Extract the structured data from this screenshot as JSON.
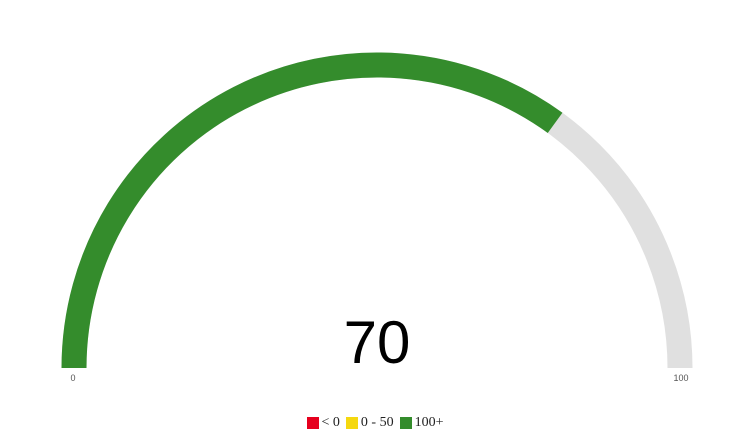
{
  "chart_data": {
    "type": "gauge",
    "value": 70,
    "value_label": "70",
    "min": 0,
    "max": 100,
    "min_label": "0",
    "max_label": "100",
    "fill_color": "#348c2c",
    "track_color": "#e0e0e0",
    "legend": [
      {
        "label": "< 0",
        "color": "#e6001e"
      },
      {
        "label": "0 - 50",
        "color": "#f5d80f"
      },
      {
        "label": "100+",
        "color": "#348c2c"
      }
    ],
    "legend_position": "bottom-center"
  }
}
